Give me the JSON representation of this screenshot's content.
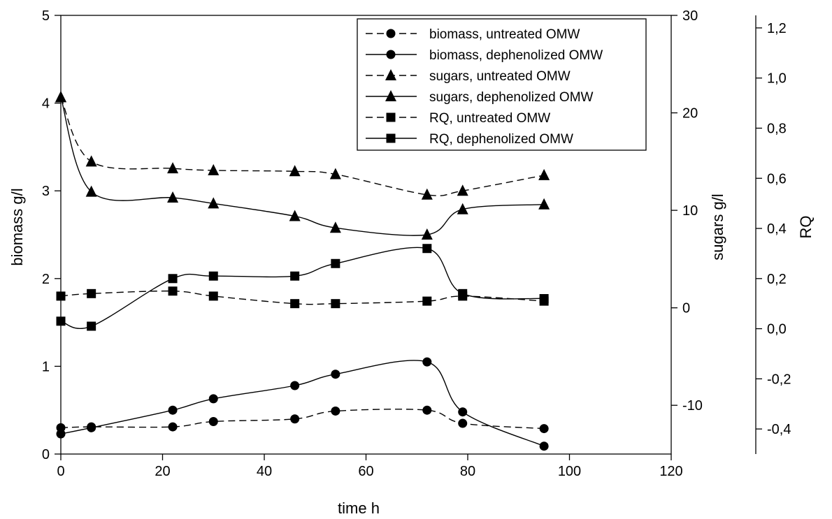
{
  "chart_data": {
    "type": "line",
    "title": "",
    "xlabel": "time h",
    "xlim": [
      0,
      120
    ],
    "xticks": [
      0,
      20,
      40,
      60,
      80,
      100,
      120
    ],
    "axes": {
      "biomass": {
        "label": "biomass g/l",
        "lim": [
          0,
          5
        ],
        "ticks": [
          0,
          1,
          2,
          3,
          4,
          5
        ],
        "tick_labels": [
          "0",
          "1",
          "2",
          "3",
          "4",
          "5"
        ]
      },
      "sugars": {
        "label": "sugars g/l",
        "lim": [
          -15,
          30
        ],
        "ticks": [
          -10,
          0,
          10,
          20,
          30
        ],
        "tick_labels": [
          "-10",
          "0",
          "10",
          "20",
          "30"
        ]
      },
      "rq": {
        "label": "RQ",
        "lim": [
          -0.5,
          1.25
        ],
        "ticks": [
          -0.4,
          -0.2,
          0.0,
          0.2,
          0.4,
          0.6,
          0.8,
          1.0,
          1.2
        ],
        "tick_labels": [
          "-0,4",
          "-0,2",
          "0,0",
          "0,2",
          "0,4",
          "0,6",
          "0,8",
          "1,0",
          "1,2"
        ]
      }
    },
    "grid": false,
    "legend_position": "top-right",
    "series": [
      {
        "name": "biomass, untreated OMW",
        "axis": "biomass",
        "marker": "circle",
        "dash": true,
        "x": [
          0,
          6,
          22,
          30,
          46,
          54,
          72,
          79,
          95
        ],
        "y": [
          0.3,
          0.31,
          0.31,
          0.37,
          0.4,
          0.49,
          0.5,
          0.35,
          0.29
        ]
      },
      {
        "name": "biomass, dephenolized OMW",
        "axis": "biomass",
        "marker": "circle",
        "dash": false,
        "x": [
          0,
          6,
          22,
          30,
          46,
          54,
          72,
          79,
          95
        ],
        "y": [
          0.23,
          0.3,
          0.5,
          0.63,
          0.78,
          0.91,
          1.05,
          0.48,
          0.09
        ]
      },
      {
        "name": "sugars, untreated OMW",
        "axis": "sugars",
        "marker": "triangle",
        "dash": true,
        "x": [
          0,
          6,
          22,
          30,
          46,
          54,
          72,
          79,
          95
        ],
        "y": [
          21.6,
          15.0,
          14.3,
          14.1,
          14.0,
          13.7,
          11.6,
          12.0,
          13.6
        ]
      },
      {
        "name": "sugars, dephenolized OMW",
        "axis": "sugars",
        "marker": "triangle",
        "dash": false,
        "x": [
          0,
          6,
          22,
          30,
          46,
          54,
          72,
          79,
          95
        ],
        "y": [
          21.6,
          11.9,
          11.3,
          10.7,
          9.4,
          8.2,
          7.5,
          10.1,
          10.6
        ]
      },
      {
        "name": "RQ, untreated OMW",
        "axis": "rq",
        "marker": "square",
        "dash": true,
        "x": [
          0,
          6,
          22,
          30,
          46,
          54,
          72,
          79,
          95
        ],
        "y": [
          0.13,
          0.14,
          0.15,
          0.13,
          0.1,
          0.1,
          0.11,
          0.13,
          0.11
        ]
      },
      {
        "name": "RQ, dephenolized OMW",
        "axis": "rq",
        "marker": "square",
        "dash": false,
        "x": [
          0,
          6,
          22,
          30,
          46,
          54,
          72,
          79,
          95
        ],
        "y": [
          0.03,
          0.01,
          0.2,
          0.21,
          0.21,
          0.26,
          0.32,
          0.14,
          0.12
        ]
      }
    ]
  }
}
